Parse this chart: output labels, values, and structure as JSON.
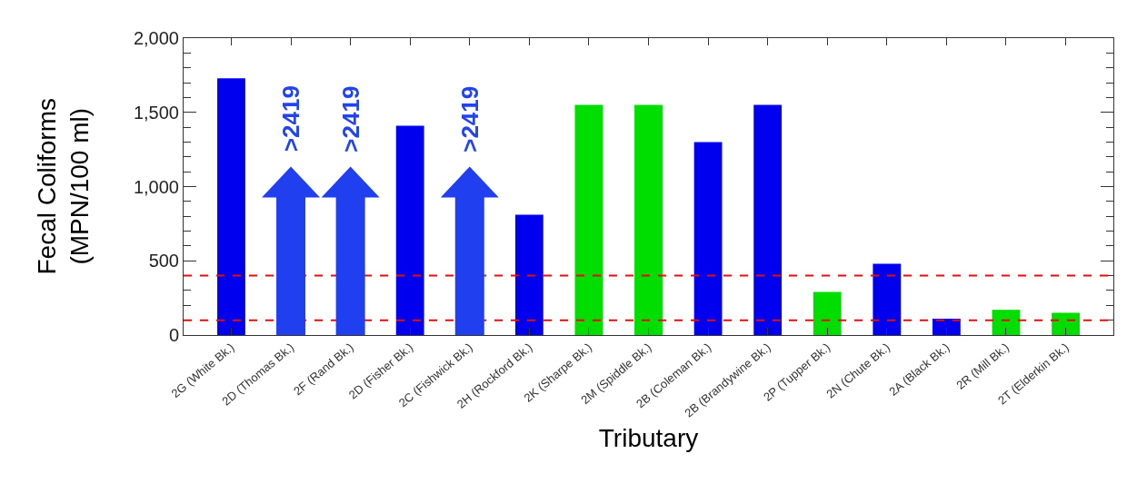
{
  "chart_data": {
    "type": "bar",
    "xlabel": "Tributary",
    "ylabel": "Fecal Coliforms\n(MPN/100 ml)",
    "categories": [
      "2G (White Bk.)",
      "2D (Thomas Bk.)",
      "2F (Rand Bk.)",
      "2D (Fisher Bk.)",
      "2C (Fishwick Bk.)",
      "2H (Rockford Bk.)",
      "2K (Sharpe Bk.)",
      "2M (Spiddle Bk.)",
      "2B (Coleman Bk.)",
      "2B (Brandywine Bk.)",
      "2P (Tupper Bk.)",
      "2N (Chute Bk.)",
      "2A (Black Bk.)",
      "2R (Mill Bk.)",
      "2T (Elderkin Bk.)"
    ],
    "values": [
      1730,
      null,
      null,
      1410,
      null,
      810,
      1550,
      1550,
      1300,
      1550,
      290,
      480,
      110,
      170,
      150
    ],
    "colors": [
      "#0000ee",
      "#2040f0",
      "#2040f0",
      "#0000ee",
      "#2040f0",
      "#0000ee",
      "#00dd00",
      "#00dd00",
      "#0000ee",
      "#0000ee",
      "#00dd00",
      "#0000ee",
      "#0000ee",
      "#00dd00",
      "#00dd00"
    ],
    "ylim": [
      0,
      2000
    ],
    "yticks": [
      0,
      {
        "value": 500,
        "label": "500"
      },
      {
        "value": 1000,
        "label": "1,000"
      },
      {
        "value": 1500,
        "label": "1,500"
      },
      {
        "value": 2000,
        "label": "2,000"
      }
    ],
    "ref_lines": [
      {
        "axis": "y",
        "value": 400,
        "color": "#dd1111",
        "line_style": "dashed"
      },
      {
        "axis": "y",
        "value": 100,
        "color": "#dd1111",
        "line_style": "dashed"
      }
    ],
    "annotations": [
      ">2419",
      ">2419",
      ">2419"
    ]
  }
}
